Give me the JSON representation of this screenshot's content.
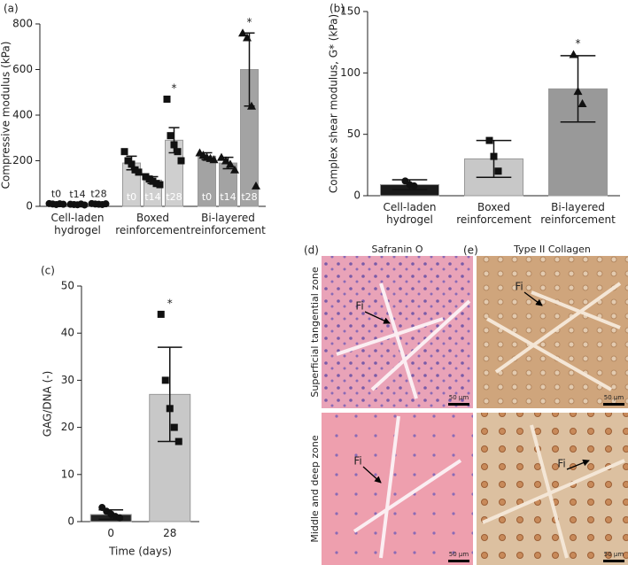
{
  "chart_data": [
    {
      "type": "bar",
      "panel_label": "(a)",
      "ylabel": "Compressive modulus (kPa)",
      "categories": [
        "Cell-laden hydrogel",
        "Boxed reinforcement",
        "Bi-layered reinforcement"
      ],
      "colors": [
        "#d9d9d9",
        "#cfcfcf",
        "#a3a3a3"
      ],
      "markers": [
        "circle",
        "square",
        "triangle"
      ],
      "series": [
        {
          "name": "t0",
          "values": [
            10,
            190,
            220
          ],
          "errors": [
            3,
            30,
            15
          ],
          "points": [
            [
              12,
              10,
              8,
              11,
              9
            ],
            [
              240,
              200,
              185,
              160,
              150
            ],
            [
              235,
              225,
              215,
              210,
              205
            ]
          ]
        },
        {
          "name": "t14",
          "values": [
            8,
            115,
            190
          ],
          "errors": [
            3,
            15,
            25
          ],
          "points": [
            [
              9,
              8,
              7,
              10,
              6
            ],
            [
              130,
              120,
              110,
              100,
              95
            ],
            [
              215,
              200,
              185,
              160
            ]
          ]
        },
        {
          "name": "t28",
          "values": [
            10,
            290,
            600
          ],
          "errors": [
            3,
            55,
            160
          ],
          "points": [
            [
              12,
              10,
              9,
              8,
              11
            ],
            [
              470,
              310,
              270,
              240,
              200
            ],
            [
              760,
              740,
              440,
              90
            ]
          ]
        }
      ],
      "significance": [
        {
          "label": "*",
          "category": 1,
          "series": 2
        },
        {
          "label": "*",
          "category": 2,
          "series": 2
        }
      ],
      "ylim": [
        0,
        800
      ],
      "yticks": [
        0,
        200,
        400,
        600,
        800
      ]
    },
    {
      "type": "bar",
      "panel_label": "(b)",
      "ylabel": "Complex shear modulus, G* (kPa)",
      "categories": [
        "Cell-laden hydrogel",
        "Boxed reinforcement",
        "Bi-layered reinforcement"
      ],
      "colors": [
        "#1a1a1a",
        "#c8c8c8",
        "#999999"
      ],
      "markers": [
        "circle",
        "square",
        "triangle"
      ],
      "values": [
        9,
        30,
        87
      ],
      "errors": [
        4,
        15,
        27
      ],
      "points": [
        [
          12,
          9,
          8
        ],
        [
          45,
          32,
          20
        ],
        [
          115,
          85,
          75
        ]
      ],
      "significance": [
        {
          "label": "*",
          "category": 2
        }
      ],
      "ylim": [
        0,
        150
      ],
      "yticks": [
        0,
        50,
        100,
        150
      ]
    },
    {
      "type": "bar",
      "panel_label": "(c)",
      "ylabel": "GAG/DNA (-)",
      "xlabel": "Time (days)",
      "categories": [
        "0",
        "28"
      ],
      "colors": [
        "#222222",
        "#c8c8c8"
      ],
      "markers": [
        "circle",
        "square"
      ],
      "values": [
        1.5,
        27
      ],
      "errors": [
        1,
        10
      ],
      "points": [
        [
          3,
          2.2,
          1.6,
          1.1,
          0.8
        ],
        [
          44,
          30,
          24,
          20,
          17
        ]
      ],
      "significance": [
        {
          "label": "*",
          "category": 1
        }
      ],
      "ylim": [
        0,
        50
      ],
      "yticks": [
        0,
        10,
        20,
        30,
        40,
        50
      ]
    }
  ],
  "image_panels": {
    "columns": [
      {
        "label": "(d)",
        "title": "Safranin O"
      },
      {
        "label": "(e)",
        "title": "Type II Collagen"
      }
    ],
    "rows": [
      "Superficial tangential zone",
      "Middle and deep zone"
    ],
    "arrow_label": "Fi",
    "scale_bar": "50 μm"
  }
}
